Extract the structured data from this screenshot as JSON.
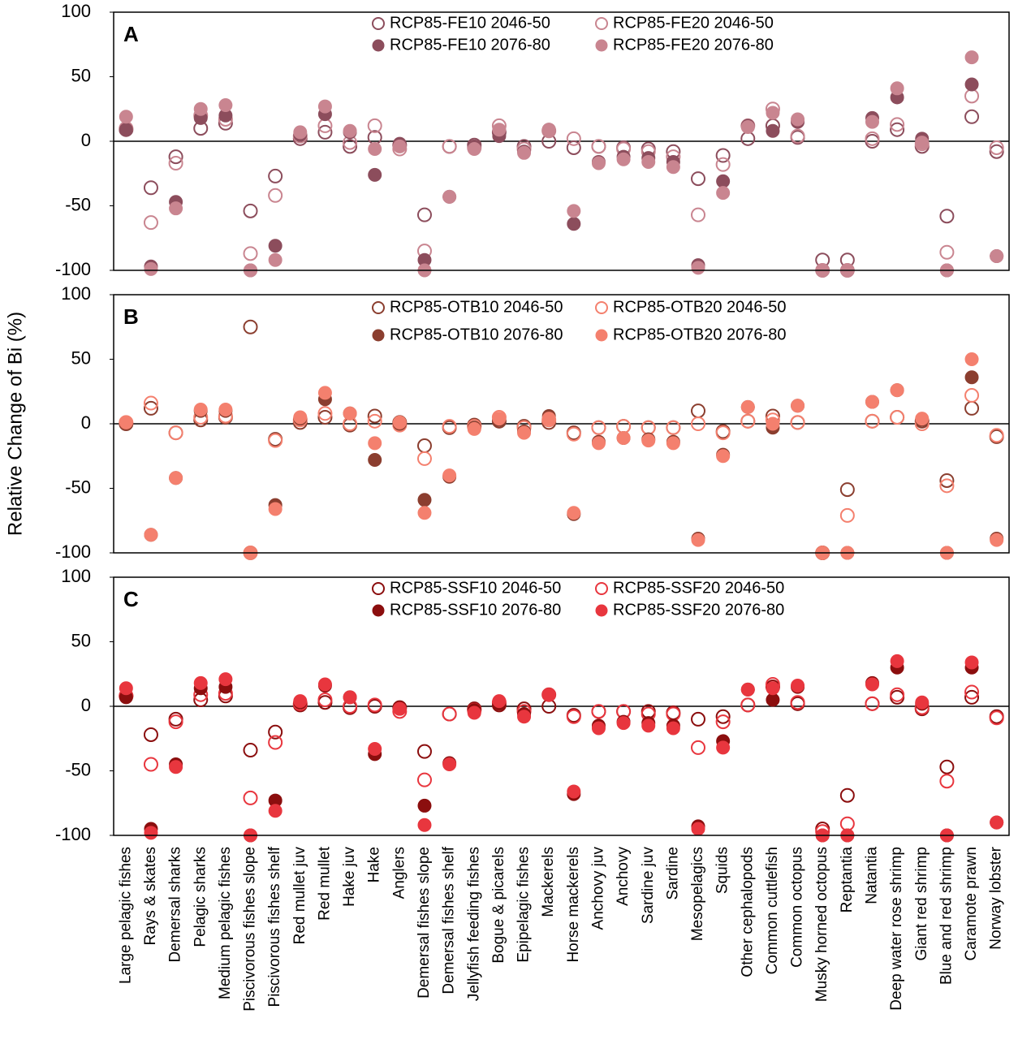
{
  "chart_data": [
    {
      "type": "scatter",
      "label": "A",
      "ylim": [
        -100,
        100
      ],
      "yticks": [
        -100,
        -50,
        0,
        50,
        100
      ],
      "zero_line": true,
      "series": [
        {
          "name": "RCP85-FE10 2046-50",
          "color": "#8c4d5c",
          "marker": "open",
          "values": [
            9,
            -36,
            -12,
            10,
            14,
            -54,
            -27,
            2,
            7,
            -4,
            3,
            -3,
            -57,
            -4,
            -3,
            7,
            -4,
            0,
            -5,
            -4,
            -5,
            -6,
            -8,
            -29,
            -11,
            2,
            12,
            3,
            -92,
            -92,
            0,
            9,
            -4,
            -58,
            19,
            -8
          ]
        },
        {
          "name": "RCP85-FE20 2046-50",
          "color": "#c98590",
          "marker": "open",
          "values": [
            10,
            -63,
            -17,
            20,
            17,
            -87,
            -42,
            4,
            12,
            -1,
            12,
            -6,
            -85,
            -4,
            -5,
            12,
            -6,
            8,
            2,
            -4,
            -6,
            -8,
            -12,
            -57,
            -18,
            12,
            25,
            4,
            -100,
            -100,
            2,
            13,
            -2,
            -86,
            35,
            -5
          ]
        },
        {
          "name": "RCP85-FE10 2076-80",
          "color": "#8c4d5c",
          "marker": "filled",
          "values": [
            9,
            -97,
            -47,
            18,
            20,
            -100,
            -81,
            5,
            21,
            7,
            -26,
            -2,
            -92,
            -43,
            -4,
            4,
            -8,
            9,
            -64,
            -16,
            -12,
            -13,
            -16,
            -96,
            -31,
            12,
            8,
            15,
            -100,
            -100,
            18,
            34,
            2,
            -100,
            44,
            -89
          ]
        },
        {
          "name": "RCP85-FE20 2076-80",
          "color": "#c98590",
          "marker": "filled",
          "values": [
            19,
            -99,
            -52,
            25,
            28,
            -100,
            -92,
            7,
            27,
            8,
            -6,
            -4,
            -100,
            -43,
            -6,
            9,
            -9,
            9,
            -54,
            -17,
            -14,
            -16,
            -20,
            -98,
            -40,
            11,
            22,
            17,
            -100,
            -100,
            15,
            41,
            -1,
            -100,
            65,
            -89
          ]
        }
      ]
    },
    {
      "type": "scatter",
      "label": "B",
      "ylabel": "Relative Change of Bi (%)",
      "ylim": [
        -100,
        100
      ],
      "yticks": [
        -100,
        -50,
        0,
        50,
        100
      ],
      "zero_line": true,
      "series": [
        {
          "name": "RCP85-OTB10 2046-50",
          "color": "#8b3e2f",
          "marker": "open",
          "values": [
            0,
            12,
            -7,
            3,
            5,
            75,
            -12,
            1,
            5,
            -1,
            6,
            1,
            -17,
            -3,
            -1,
            2,
            -2,
            1,
            -7,
            -3,
            -2,
            -3,
            -3,
            10,
            -6,
            2,
            6,
            1,
            -100,
            -51,
            2,
            5,
            2,
            -44,
            12,
            -10
          ]
        },
        {
          "name": "RCP85-OTB20 2046-50",
          "color": "#f4806e",
          "marker": "open",
          "values": [
            1,
            16,
            -7,
            5,
            6,
            -100,
            -13,
            3,
            8,
            0,
            2,
            -1,
            -27,
            -2,
            -2,
            5,
            -3,
            3,
            -8,
            -3,
            -2,
            -3,
            -3,
            0,
            -7,
            2,
            3,
            1,
            -100,
            -71,
            2,
            5,
            0,
            -48,
            22,
            -9
          ]
        },
        {
          "name": "RCP85-OTB10 2076-80",
          "color": "#8b3e2f",
          "marker": "filled",
          "values": [
            0,
            -86,
            -42,
            10,
            10,
            -100,
            -63,
            4,
            19,
            8,
            -28,
            0,
            -59,
            -41,
            -3,
            3,
            -6,
            6,
            -70,
            -14,
            -11,
            -12,
            -14,
            -89,
            -24,
            13,
            -3,
            14,
            -100,
            -100,
            17,
            26,
            3,
            -100,
            36,
            -89
          ]
        },
        {
          "name": "RCP85-OTB20 2076-80",
          "color": "#f4806e",
          "marker": "filled",
          "values": [
            1,
            -86,
            -42,
            11,
            11,
            -100,
            -66,
            5,
            24,
            8,
            -15,
            1,
            -69,
            -40,
            -4,
            4,
            -7,
            4,
            -69,
            -15,
            -11,
            -13,
            -15,
            -90,
            -25,
            13,
            0,
            14,
            -100,
            -100,
            17,
            26,
            4,
            -100,
            50,
            -90
          ]
        }
      ]
    },
    {
      "type": "scatter",
      "label": "C",
      "ylim": [
        -100,
        100
      ],
      "yticks": [
        -100,
        -50,
        0,
        50,
        100
      ],
      "zero_line": true,
      "categories": [
        "Large pelagic fishes",
        "Rays & skates",
        "Demersal sharks",
        "Pelagic sharks",
        "Medium pelagic fishes",
        "Piscivorous fishes slope",
        "Piscivorous fishes shelf",
        "Red mullet juv",
        "Red mullet",
        "Hake juv",
        "Hake",
        "Anglers",
        "Demersal fishes slope",
        "Demersal fishes shelf",
        "Jellyfish feeding fishes",
        "Bogue & picarels",
        "Epipelagic fishes",
        "Mackerels",
        "Horse mackerels",
        "Anchovy juv",
        "Anchovy",
        "Sardine juv",
        "Sardine",
        "Mesopelagics",
        "Squids",
        "Other cephalopods",
        "Common cuttlefish",
        "Common octopus",
        "Musky horned octopus",
        "Reptantia",
        "Natantia",
        "Deep water rose shrimp",
        "Giant red shrimp",
        "Blue and red shrimp",
        "Caramote prawn",
        "Norway lobster"
      ],
      "series": [
        {
          "name": "RCP85-SSF10 2046-50",
          "color": "#8b0e0e",
          "marker": "open",
          "values": [
            8,
            -22,
            -10,
            5,
            8,
            -34,
            -20,
            1,
            3,
            -1,
            0,
            -1,
            -35,
            -6,
            -2,
            1,
            -2,
            0,
            -7,
            -4,
            -4,
            -4,
            -5,
            -10,
            -8,
            1,
            15,
            2,
            -95,
            -69,
            2,
            7,
            -2,
            -47,
            7,
            -8
          ]
        },
        {
          "name": "RCP85-SSF20 2046-50",
          "color": "#e8363e",
          "marker": "open",
          "values": [
            8,
            -45,
            -12,
            9,
            10,
            -71,
            -28,
            2,
            5,
            0,
            1,
            -4,
            -57,
            -6,
            -3,
            3,
            -4,
            9,
            -8,
            -4,
            -4,
            -6,
            -6,
            -32,
            -12,
            1,
            17,
            3,
            -97,
            -91,
            2,
            9,
            -1,
            -58,
            11,
            -9
          ]
        },
        {
          "name": "RCP85-SSF10 2076-80",
          "color": "#8b0e0e",
          "marker": "filled",
          "values": [
            7,
            -95,
            -45,
            14,
            15,
            -100,
            -73,
            3,
            16,
            7,
            -37,
            -1,
            -77,
            -44,
            -3,
            2,
            -6,
            9,
            -68,
            -15,
            -12,
            -13,
            -15,
            -93,
            -27,
            13,
            5,
            15,
            -100,
            -100,
            18,
            30,
            2,
            -100,
            30,
            -90
          ]
        },
        {
          "name": "RCP85-SSF20 2076-80",
          "color": "#e8363e",
          "marker": "filled",
          "values": [
            14,
            -98,
            -47,
            18,
            21,
            -100,
            -81,
            4,
            17,
            7,
            -33,
            -2,
            -92,
            -45,
            -5,
            4,
            -8,
            9,
            -66,
            -17,
            -13,
            -15,
            -17,
            -95,
            -32,
            13,
            14,
            16,
            -100,
            -100,
            17,
            35,
            3,
            -100,
            34,
            -90
          ]
        }
      ]
    }
  ]
}
